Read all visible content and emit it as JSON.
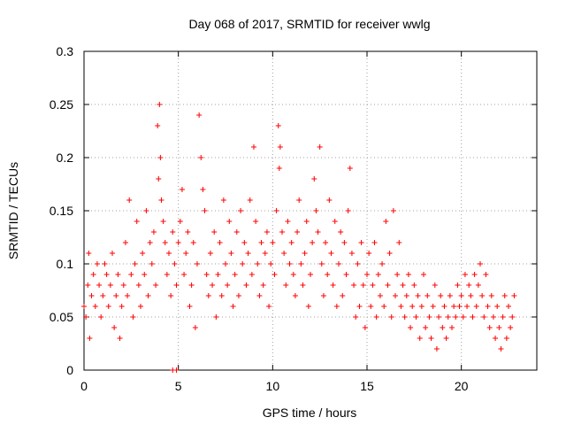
{
  "chart_data": {
    "type": "scatter",
    "title": "Day 068 of 2017, SRMTID for receiver wwlg",
    "xlabel": "GPS time / hours",
    "ylabel": "SRMTID / TECUs",
    "xlim": [
      0,
      24
    ],
    "ylim": [
      0,
      0.3
    ],
    "xticks": [
      0,
      5,
      10,
      15,
      20
    ],
    "xtick_labels": [
      "0",
      "5",
      "10",
      "15",
      "20"
    ],
    "yticks": [
      0,
      0.05,
      0.1,
      0.15,
      0.2,
      0.25,
      0.3
    ],
    "ytick_labels": [
      "0",
      "0.05",
      "0.1",
      "0.15",
      "0.2",
      "0.25",
      "0.3"
    ],
    "grid": true,
    "marker": "+",
    "color": "#ff0000",
    "series": [
      {
        "name": "SRMTID",
        "points": [
          [
            0.0,
            0.06
          ],
          [
            0.1,
            0.05
          ],
          [
            0.2,
            0.08
          ],
          [
            0.25,
            0.11
          ],
          [
            0.3,
            0.03
          ],
          [
            0.4,
            0.07
          ],
          [
            0.5,
            0.09
          ],
          [
            0.6,
            0.06
          ],
          [
            0.7,
            0.1
          ],
          [
            0.8,
            0.08
          ],
          [
            0.9,
            0.05
          ],
          [
            1.0,
            0.07
          ],
          [
            1.1,
            0.1
          ],
          [
            1.2,
            0.09
          ],
          [
            1.3,
            0.06
          ],
          [
            1.4,
            0.08
          ],
          [
            1.5,
            0.11
          ],
          [
            1.6,
            0.04
          ],
          [
            1.7,
            0.07
          ],
          [
            1.8,
            0.09
          ],
          [
            1.9,
            0.03
          ],
          [
            2.0,
            0.06
          ],
          [
            2.1,
            0.08
          ],
          [
            2.2,
            0.12
          ],
          [
            2.3,
            0.07
          ],
          [
            2.4,
            0.16
          ],
          [
            2.5,
            0.09
          ],
          [
            2.6,
            0.05
          ],
          [
            2.7,
            0.1
          ],
          [
            2.8,
            0.14
          ],
          [
            2.9,
            0.08
          ],
          [
            3.0,
            0.06
          ],
          [
            3.1,
            0.11
          ],
          [
            3.2,
            0.09
          ],
          [
            3.3,
            0.15
          ],
          [
            3.4,
            0.07
          ],
          [
            3.5,
            0.12
          ],
          [
            3.6,
            0.1
          ],
          [
            3.7,
            0.13
          ],
          [
            3.8,
            0.08
          ],
          [
            3.9,
            0.23
          ],
          [
            3.95,
            0.18
          ],
          [
            4.0,
            0.25
          ],
          [
            4.05,
            0.2
          ],
          [
            4.1,
            0.16
          ],
          [
            4.2,
            0.14
          ],
          [
            4.3,
            0.12
          ],
          [
            4.4,
            0.09
          ],
          [
            4.5,
            0.11
          ],
          [
            4.6,
            0.07
          ],
          [
            4.7,
            0.13
          ],
          [
            4.8,
            0.1
          ],
          [
            4.9,
            0.08
          ],
          [
            5.0,
            0.12
          ],
          [
            5.1,
            0.14
          ],
          [
            5.2,
            0.17
          ],
          [
            5.3,
            0.09
          ],
          [
            5.4,
            0.11
          ],
          [
            5.5,
            0.13
          ],
          [
            5.6,
            0.06
          ],
          [
            5.7,
            0.08
          ],
          [
            5.8,
            0.12
          ],
          [
            5.9,
            0.04
          ],
          [
            6.0,
            0.1
          ],
          [
            6.1,
            0.24
          ],
          [
            6.2,
            0.2
          ],
          [
            6.3,
            0.17
          ],
          [
            6.4,
            0.15
          ],
          [
            6.5,
            0.09
          ],
          [
            6.6,
            0.07
          ],
          [
            6.7,
            0.11
          ],
          [
            6.8,
            0.08
          ],
          [
            6.9,
            0.13
          ],
          [
            7.0,
            0.05
          ],
          [
            7.1,
            0.09
          ],
          [
            7.2,
            0.12
          ],
          [
            7.3,
            0.07
          ],
          [
            7.4,
            0.16
          ],
          [
            7.5,
            0.1
          ],
          [
            7.6,
            0.08
          ],
          [
            7.7,
            0.14
          ],
          [
            7.8,
            0.11
          ],
          [
            7.9,
            0.06
          ],
          [
            8.0,
            0.09
          ],
          [
            8.1,
            0.13
          ],
          [
            8.2,
            0.07
          ],
          [
            8.3,
            0.15
          ],
          [
            8.4,
            0.1
          ],
          [
            8.5,
            0.12
          ],
          [
            8.6,
            0.08
          ],
          [
            8.7,
            0.11
          ],
          [
            8.8,
            0.16
          ],
          [
            8.9,
            0.09
          ],
          [
            9.0,
            0.21
          ],
          [
            9.1,
            0.14
          ],
          [
            9.2,
            0.1
          ],
          [
            9.3,
            0.07
          ],
          [
            9.4,
            0.12
          ],
          [
            9.5,
            0.08
          ],
          [
            9.6,
            0.11
          ],
          [
            9.7,
            0.13
          ],
          [
            9.8,
            0.06
          ],
          [
            9.9,
            0.1
          ],
          [
            10.0,
            0.12
          ],
          [
            10.1,
            0.09
          ],
          [
            10.2,
            0.15
          ],
          [
            10.3,
            0.23
          ],
          [
            10.35,
            0.19
          ],
          [
            10.4,
            0.21
          ],
          [
            10.5,
            0.13
          ],
          [
            10.6,
            0.11
          ],
          [
            10.7,
            0.08
          ],
          [
            10.8,
            0.14
          ],
          [
            10.9,
            0.1
          ],
          [
            11.0,
            0.12
          ],
          [
            11.1,
            0.09
          ],
          [
            11.2,
            0.07
          ],
          [
            11.3,
            0.13
          ],
          [
            11.4,
            0.16
          ],
          [
            11.5,
            0.1
          ],
          [
            11.6,
            0.08
          ],
          [
            11.7,
            0.11
          ],
          [
            11.8,
            0.14
          ],
          [
            11.9,
            0.06
          ],
          [
            12.0,
            0.09
          ],
          [
            12.1,
            0.12
          ],
          [
            12.2,
            0.18
          ],
          [
            12.3,
            0.15
          ],
          [
            12.4,
            0.13
          ],
          [
            12.5,
            0.21
          ],
          [
            12.6,
            0.1
          ],
          [
            12.7,
            0.07
          ],
          [
            12.8,
            0.12
          ],
          [
            12.9,
            0.09
          ],
          [
            13.0,
            0.16
          ],
          [
            13.1,
            0.11
          ],
          [
            13.2,
            0.08
          ],
          [
            13.3,
            0.14
          ],
          [
            13.4,
            0.06
          ],
          [
            13.5,
            0.1
          ],
          [
            13.6,
            0.13
          ],
          [
            13.7,
            0.07
          ],
          [
            13.8,
            0.12
          ],
          [
            13.9,
            0.09
          ],
          [
            14.0,
            0.15
          ],
          [
            14.1,
            0.19
          ],
          [
            14.2,
            0.11
          ],
          [
            14.3,
            0.08
          ],
          [
            14.4,
            0.05
          ],
          [
            14.5,
            0.1
          ],
          [
            14.6,
            0.06
          ],
          [
            14.7,
            0.12
          ],
          [
            14.8,
            0.08
          ],
          [
            14.9,
            0.04
          ],
          [
            15.0,
            0.09
          ],
          [
            15.1,
            0.11
          ],
          [
            15.2,
            0.06
          ],
          [
            15.3,
            0.08
          ],
          [
            15.4,
            0.12
          ],
          [
            15.5,
            0.05
          ],
          [
            15.6,
            0.09
          ],
          [
            15.7,
            0.07
          ],
          [
            15.8,
            0.1
          ],
          [
            15.9,
            0.06
          ],
          [
            16.0,
            0.14
          ],
          [
            16.1,
            0.08
          ],
          [
            16.2,
            0.11
          ],
          [
            16.3,
            0.05
          ],
          [
            16.4,
            0.15
          ],
          [
            16.5,
            0.07
          ],
          [
            16.6,
            0.09
          ],
          [
            16.7,
            0.12
          ],
          [
            16.8,
            0.06
          ],
          [
            16.9,
            0.08
          ],
          [
            17.0,
            0.05
          ],
          [
            17.1,
            0.07
          ],
          [
            17.2,
            0.09
          ],
          [
            17.3,
            0.04
          ],
          [
            17.4,
            0.06
          ],
          [
            17.5,
            0.08
          ],
          [
            17.6,
            0.05
          ],
          [
            17.7,
            0.07
          ],
          [
            17.8,
            0.03
          ],
          [
            17.9,
            0.06
          ],
          [
            18.0,
            0.09
          ],
          [
            18.1,
            0.04
          ],
          [
            18.2,
            0.07
          ],
          [
            18.3,
            0.05
          ],
          [
            18.4,
            0.03
          ],
          [
            18.5,
            0.06
          ],
          [
            18.6,
            0.08
          ],
          [
            18.7,
            0.02
          ],
          [
            18.8,
            0.05
          ],
          [
            18.9,
            0.07
          ],
          [
            19.0,
            0.04
          ],
          [
            19.1,
            0.06
          ],
          [
            19.2,
            0.03
          ],
          [
            19.3,
            0.05
          ],
          [
            19.4,
            0.07
          ],
          [
            19.5,
            0.04
          ],
          [
            19.6,
            0.06
          ],
          [
            19.7,
            0.05
          ],
          [
            19.8,
            0.08
          ],
          [
            19.9,
            0.06
          ],
          [
            20.0,
            0.07
          ],
          [
            20.1,
            0.05
          ],
          [
            20.2,
            0.09
          ],
          [
            20.3,
            0.06
          ],
          [
            20.4,
            0.08
          ],
          [
            20.5,
            0.07
          ],
          [
            20.6,
            0.05
          ],
          [
            20.7,
            0.09
          ],
          [
            20.8,
            0.06
          ],
          [
            20.9,
            0.08
          ],
          [
            21.0,
            0.1
          ],
          [
            21.1,
            0.07
          ],
          [
            21.2,
            0.05
          ],
          [
            21.3,
            0.09
          ],
          [
            21.4,
            0.06
          ],
          [
            21.5,
            0.04
          ],
          [
            21.6,
            0.07
          ],
          [
            21.7,
            0.05
          ],
          [
            21.8,
            0.03
          ],
          [
            21.9,
            0.06
          ],
          [
            22.0,
            0.04
          ],
          [
            22.1,
            0.02
          ],
          [
            22.2,
            0.05
          ],
          [
            22.3,
            0.07
          ],
          [
            22.4,
            0.03
          ],
          [
            22.5,
            0.06
          ],
          [
            22.6,
            0.04
          ],
          [
            22.7,
            0.05
          ],
          [
            22.8,
            0.07
          ],
          [
            4.7,
            0.0
          ],
          [
            4.9,
            0.0
          ]
        ]
      }
    ]
  }
}
